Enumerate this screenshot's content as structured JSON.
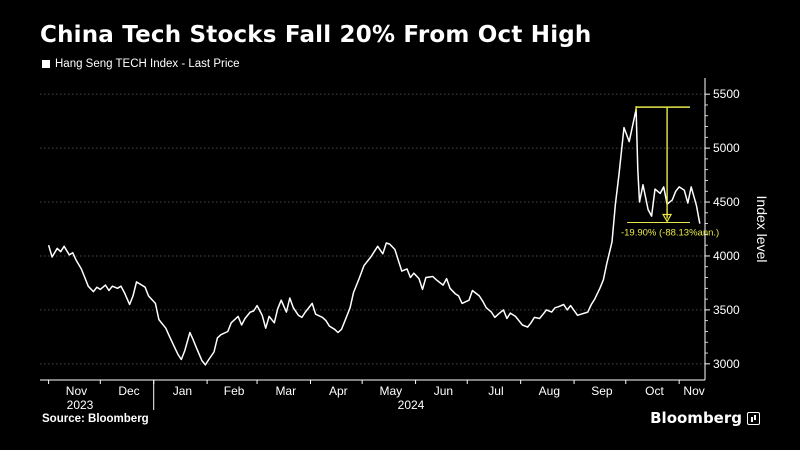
{
  "title": "China Tech Stocks Fall 20% From Oct High",
  "legend": {
    "label": "Hang Seng TECH Index - Last Price",
    "color": "#ffffff"
  },
  "source": "Source: Bloomberg",
  "brand": "Bloomberg",
  "chart_data": {
    "type": "line",
    "ylabel": "Index level",
    "ylim": [
      2850,
      5650
    ],
    "yticks": [
      3000,
      3500,
      4000,
      4500,
      5000,
      5500
    ],
    "x_tick_labels": [
      "Nov",
      "Dec",
      "Jan",
      "Feb",
      "Mar",
      "Apr",
      "May",
      "Jun",
      "Jul",
      "Aug",
      "Sep",
      "Oct",
      "Nov"
    ],
    "year_labels": [
      "2023",
      "2024"
    ],
    "grid": true,
    "series": [
      {
        "name": "Hang Seng TECH Index - Last Price",
        "color": "#ffffff",
        "points": [
          [
            "2023-11-01",
            4100
          ],
          [
            "2023-11-03",
            3990
          ],
          [
            "2023-11-06",
            4070
          ],
          [
            "2023-11-08",
            4040
          ],
          [
            "2023-11-10",
            4090
          ],
          [
            "2023-11-13",
            4010
          ],
          [
            "2023-11-15",
            4030
          ],
          [
            "2023-11-17",
            3960
          ],
          [
            "2023-11-20",
            3880
          ],
          [
            "2023-11-22",
            3800
          ],
          [
            "2023-11-24",
            3720
          ],
          [
            "2023-11-27",
            3670
          ],
          [
            "2023-11-29",
            3710
          ],
          [
            "2023-12-01",
            3690
          ],
          [
            "2023-12-04",
            3730
          ],
          [
            "2023-12-06",
            3680
          ],
          [
            "2023-12-08",
            3720
          ],
          [
            "2023-12-11",
            3700
          ],
          [
            "2023-12-13",
            3720
          ],
          [
            "2023-12-15",
            3660
          ],
          [
            "2023-12-18",
            3550
          ],
          [
            "2023-12-20",
            3630
          ],
          [
            "2023-12-22",
            3760
          ],
          [
            "2023-12-27",
            3710
          ],
          [
            "2023-12-29",
            3630
          ],
          [
            "2024-01-02",
            3560
          ],
          [
            "2024-01-04",
            3410
          ],
          [
            "2024-01-08",
            3330
          ],
          [
            "2024-01-10",
            3260
          ],
          [
            "2024-01-12",
            3190
          ],
          [
            "2024-01-15",
            3090
          ],
          [
            "2024-01-17",
            3040
          ],
          [
            "2024-01-19",
            3120
          ],
          [
            "2024-01-22",
            3290
          ],
          [
            "2024-01-24",
            3220
          ],
          [
            "2024-01-26",
            3140
          ],
          [
            "2024-01-29",
            3030
          ],
          [
            "2024-01-31",
            2990
          ],
          [
            "2024-02-02",
            3040
          ],
          [
            "2024-02-05",
            3110
          ],
          [
            "2024-02-07",
            3240
          ],
          [
            "2024-02-09",
            3270
          ],
          [
            "2024-02-13",
            3300
          ],
          [
            "2024-02-15",
            3380
          ],
          [
            "2024-02-19",
            3440
          ],
          [
            "2024-02-21",
            3360
          ],
          [
            "2024-02-23",
            3420
          ],
          [
            "2024-02-26",
            3480
          ],
          [
            "2024-02-28",
            3490
          ],
          [
            "2024-03-01",
            3540
          ],
          [
            "2024-03-04",
            3450
          ],
          [
            "2024-03-06",
            3330
          ],
          [
            "2024-03-08",
            3440
          ],
          [
            "2024-03-11",
            3380
          ],
          [
            "2024-03-13",
            3510
          ],
          [
            "2024-03-15",
            3590
          ],
          [
            "2024-03-18",
            3480
          ],
          [
            "2024-03-20",
            3610
          ],
          [
            "2024-03-22",
            3520
          ],
          [
            "2024-03-25",
            3450
          ],
          [
            "2024-03-27",
            3430
          ],
          [
            "2024-03-29",
            3480
          ],
          [
            "2024-04-02",
            3560
          ],
          [
            "2024-04-04",
            3460
          ],
          [
            "2024-04-08",
            3430
          ],
          [
            "2024-04-10",
            3400
          ],
          [
            "2024-04-12",
            3350
          ],
          [
            "2024-04-15",
            3320
          ],
          [
            "2024-04-17",
            3290
          ],
          [
            "2024-04-19",
            3320
          ],
          [
            "2024-04-22",
            3440
          ],
          [
            "2024-04-24",
            3520
          ],
          [
            "2024-04-26",
            3660
          ],
          [
            "2024-04-29",
            3780
          ],
          [
            "2024-05-02",
            3910
          ],
          [
            "2024-05-06",
            3990
          ],
          [
            "2024-05-08",
            4040
          ],
          [
            "2024-05-10",
            4090
          ],
          [
            "2024-05-13",
            4020
          ],
          [
            "2024-05-15",
            4120
          ],
          [
            "2024-05-17",
            4110
          ],
          [
            "2024-05-20",
            4060
          ],
          [
            "2024-05-22",
            3960
          ],
          [
            "2024-05-24",
            3860
          ],
          [
            "2024-05-27",
            3880
          ],
          [
            "2024-05-29",
            3800
          ],
          [
            "2024-05-31",
            3840
          ],
          [
            "2024-06-03",
            3790
          ],
          [
            "2024-06-05",
            3690
          ],
          [
            "2024-06-07",
            3800
          ],
          [
            "2024-06-11",
            3810
          ],
          [
            "2024-06-13",
            3780
          ],
          [
            "2024-06-17",
            3730
          ],
          [
            "2024-06-19",
            3790
          ],
          [
            "2024-06-21",
            3700
          ],
          [
            "2024-06-24",
            3650
          ],
          [
            "2024-06-26",
            3630
          ],
          [
            "2024-06-28",
            3560
          ],
          [
            "2024-07-02",
            3590
          ],
          [
            "2024-07-04",
            3680
          ],
          [
            "2024-07-08",
            3630
          ],
          [
            "2024-07-10",
            3580
          ],
          [
            "2024-07-12",
            3520
          ],
          [
            "2024-07-15",
            3480
          ],
          [
            "2024-07-17",
            3430
          ],
          [
            "2024-07-19",
            3460
          ],
          [
            "2024-07-22",
            3500
          ],
          [
            "2024-07-24",
            3420
          ],
          [
            "2024-07-26",
            3470
          ],
          [
            "2024-07-29",
            3440
          ],
          [
            "2024-07-31",
            3400
          ],
          [
            "2024-08-02",
            3360
          ],
          [
            "2024-08-05",
            3340
          ],
          [
            "2024-08-07",
            3380
          ],
          [
            "2024-08-09",
            3430
          ],
          [
            "2024-08-12",
            3420
          ],
          [
            "2024-08-14",
            3460
          ],
          [
            "2024-08-16",
            3500
          ],
          [
            "2024-08-19",
            3480
          ],
          [
            "2024-08-21",
            3520
          ],
          [
            "2024-08-23",
            3530
          ],
          [
            "2024-08-26",
            3550
          ],
          [
            "2024-08-28",
            3500
          ],
          [
            "2024-08-30",
            3540
          ],
          [
            "2024-09-03",
            3450
          ],
          [
            "2024-09-05",
            3460
          ],
          [
            "2024-09-09",
            3480
          ],
          [
            "2024-09-11",
            3550
          ],
          [
            "2024-09-13",
            3600
          ],
          [
            "2024-09-16",
            3700
          ],
          [
            "2024-09-18",
            3780
          ],
          [
            "2024-09-20",
            3930
          ],
          [
            "2024-09-23",
            4130
          ],
          [
            "2024-09-25",
            4480
          ],
          [
            "2024-09-27",
            4750
          ],
          [
            "2024-09-30",
            5190
          ],
          [
            "2024-10-03",
            5060
          ],
          [
            "2024-10-07",
            5360
          ],
          [
            "2024-10-08",
            4800
          ],
          [
            "2024-10-09",
            4500
          ],
          [
            "2024-10-11",
            4660
          ],
          [
            "2024-10-14",
            4430
          ],
          [
            "2024-10-16",
            4370
          ],
          [
            "2024-10-18",
            4620
          ],
          [
            "2024-10-21",
            4580
          ],
          [
            "2024-10-23",
            4640
          ],
          [
            "2024-10-25",
            4480
          ],
          [
            "2024-10-28",
            4520
          ],
          [
            "2024-10-30",
            4600
          ],
          [
            "2024-11-01",
            4640
          ],
          [
            "2024-11-04",
            4610
          ],
          [
            "2024-11-06",
            4490
          ],
          [
            "2024-11-08",
            4640
          ],
          [
            "2024-11-11",
            4470
          ],
          [
            "2024-11-13",
            4300
          ]
        ]
      }
    ],
    "annotation": {
      "color": "#e8e84a",
      "high_date": "2024-10-07",
      "high_value": 5380,
      "end_date": "2024-11-13",
      "low_value": 4310,
      "label": "-19.90% (-88.13%ann.)"
    }
  }
}
